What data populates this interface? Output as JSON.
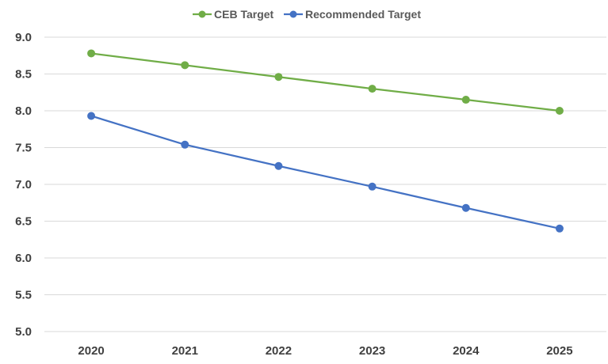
{
  "chart_data": {
    "type": "line",
    "title": "",
    "xlabel": "",
    "ylabel": "",
    "categories": [
      "2020",
      "2021",
      "2022",
      "2023",
      "2024",
      "2025"
    ],
    "ylim": [
      5.0,
      9.0
    ],
    "yticks": [
      "9.0",
      "8.5",
      "8.0",
      "7.5",
      "7.0",
      "6.5",
      "6.0",
      "5.5",
      "5.0"
    ],
    "grid": true,
    "legend_position": "top-center",
    "series": [
      {
        "name": "CEB Target",
        "color": "#70ad47",
        "values": [
          8.78,
          8.62,
          8.46,
          8.3,
          8.15,
          8.0
        ]
      },
      {
        "name": "Recommended Target",
        "color": "#4472c4",
        "values": [
          7.93,
          7.54,
          7.25,
          6.97,
          6.68,
          6.4
        ]
      }
    ]
  }
}
